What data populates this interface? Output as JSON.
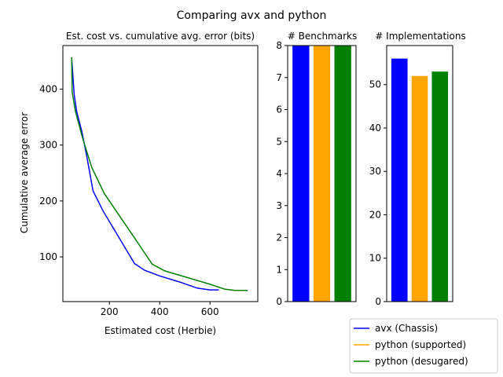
{
  "figure": {
    "title": "Comparing avx and python"
  },
  "colors": {
    "avx": "#0000ff",
    "supported": "#ffa500",
    "desugared": "#008000",
    "axis": "#000000",
    "legend_border": "#cccccc"
  },
  "legend": {
    "placement": "lower-right",
    "entries": [
      {
        "label": "avx (Chassis)",
        "color": "#0000ff"
      },
      {
        "label": "python (supported)",
        "color": "#ffa500"
      },
      {
        "label": "python (desugared)",
        "color": "#008000"
      }
    ]
  },
  "chart_data": [
    {
      "type": "line",
      "title": "Est. cost vs. cumulative avg. error (bits)",
      "xlabel": "Estimated cost (Herbie)",
      "ylabel": "Cumulative average error",
      "xlim": [
        15,
        790
      ],
      "ylim": [
        20,
        478
      ],
      "xticks": [
        200,
        400,
        600
      ],
      "yticks": [
        100,
        200,
        300,
        400
      ],
      "grid": false,
      "series": [
        {
          "name": "avx (Chassis)",
          "color": "#0000ff",
          "points": [
            [
              50,
              455
            ],
            [
              60,
              390
            ],
            [
              70,
              360
            ],
            [
              90,
              325
            ],
            [
              110,
              280
            ],
            [
              135,
              218
            ],
            [
              175,
              182
            ],
            [
              300,
              88
            ],
            [
              340,
              76
            ],
            [
              400,
              66
            ],
            [
              480,
              55
            ],
            [
              550,
              44
            ],
            [
              600,
              41
            ],
            [
              635,
              41
            ]
          ]
        },
        {
          "name": "python (desugared)",
          "color": "#008000",
          "points": [
            [
              50,
              457
            ],
            [
              52,
              395
            ],
            [
              65,
              360
            ],
            [
              95,
              310
            ],
            [
              130,
              260
            ],
            [
              180,
              213
            ],
            [
              230,
              180
            ],
            [
              300,
              134
            ],
            [
              370,
              87
            ],
            [
              420,
              75
            ],
            [
              510,
              63
            ],
            [
              600,
              51
            ],
            [
              660,
              42
            ],
            [
              700,
              40
            ],
            [
              750,
              40
            ]
          ]
        }
      ]
    },
    {
      "type": "bar",
      "title": "# Benchmarks",
      "categories": [
        "avx (Chassis)",
        "python (supported)",
        "python (desugared)"
      ],
      "values": [
        8,
        8,
        8
      ],
      "colors": [
        "#0000ff",
        "#ffa500",
        "#008000"
      ],
      "ylim": [
        0,
        8
      ],
      "yticks": [
        0,
        1,
        2,
        3,
        4,
        5,
        6,
        7,
        8
      ]
    },
    {
      "type": "bar",
      "title": "# Implementations",
      "categories": [
        "avx (Chassis)",
        "python (supported)",
        "python (desugared)"
      ],
      "values": [
        56,
        52,
        53
      ],
      "colors": [
        "#0000ff",
        "#ffa500",
        "#008000"
      ],
      "ylim": [
        0,
        59
      ],
      "yticks": [
        0,
        10,
        20,
        30,
        40,
        50
      ]
    }
  ]
}
